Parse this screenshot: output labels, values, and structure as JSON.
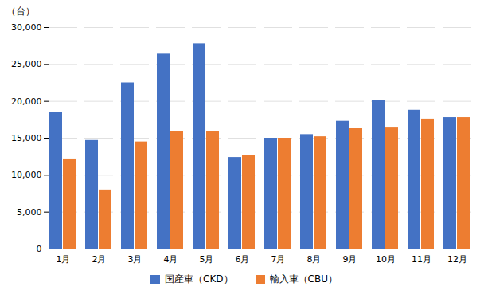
{
  "chart_data": {
    "type": "bar",
    "y_label": "（台）",
    "categories": [
      "1月",
      "2月",
      "3月",
      "4月",
      "5月",
      "6月",
      "7月",
      "8月",
      "9月",
      "10月",
      "11月",
      "12月"
    ],
    "series": [
      {
        "name": "国産車（CKD）",
        "color": "#4472C4",
        "values": [
          18500,
          14700,
          22500,
          26400,
          27800,
          12400,
          15000,
          15500,
          17300,
          20100,
          18800,
          17800
        ]
      },
      {
        "name": "輸入車（CBU）",
        "color": "#ED7D31",
        "values": [
          12200,
          8000,
          14500,
          15900,
          15900,
          12700,
          15000,
          15200,
          16300,
          16500,
          17600,
          17800
        ]
      }
    ],
    "ylim": [
      0,
      30000
    ],
    "yticks": [
      0,
      {
        "value": 5000,
        "label": "5,000"
      },
      {
        "value": 10000,
        "label": "10,000"
      },
      {
        "value": 15000,
        "label": "15,000"
      },
      {
        "value": 20000,
        "label": "20,000"
      },
      {
        "value": 25000,
        "label": "25,000"
      },
      {
        "value": 30000,
        "label": "30,000"
      }
    ],
    "grid": true,
    "legend": "bottom"
  }
}
